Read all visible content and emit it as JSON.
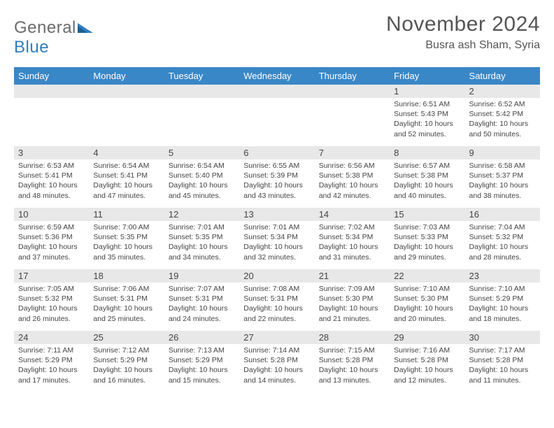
{
  "logo": {
    "word1": "General",
    "word2": "Blue"
  },
  "title": "November 2024",
  "location": "Busra ash Sham, Syria",
  "colors": {
    "header_bg": "#3a87c7",
    "header_text": "#ffffff",
    "daynum_bg": "#e8e8e8",
    "text": "#444444",
    "logo_gray": "#6b6b6b",
    "logo_blue": "#2f7fbf",
    "page_bg": "#ffffff"
  },
  "typography": {
    "title_fontsize": 30,
    "location_fontsize": 16,
    "dayheader_fontsize": 13,
    "body_fontsize": 10.5
  },
  "day_headers": [
    "Sunday",
    "Monday",
    "Tuesday",
    "Wednesday",
    "Thursday",
    "Friday",
    "Saturday"
  ],
  "weeks": [
    [
      {
        "num": "",
        "sunrise": "",
        "sunset": "",
        "daylight": ""
      },
      {
        "num": "",
        "sunrise": "",
        "sunset": "",
        "daylight": ""
      },
      {
        "num": "",
        "sunrise": "",
        "sunset": "",
        "daylight": ""
      },
      {
        "num": "",
        "sunrise": "",
        "sunset": "",
        "daylight": ""
      },
      {
        "num": "",
        "sunrise": "",
        "sunset": "",
        "daylight": ""
      },
      {
        "num": "1",
        "sunrise": "Sunrise: 6:51 AM",
        "sunset": "Sunset: 5:43 PM",
        "daylight": "Daylight: 10 hours and 52 minutes."
      },
      {
        "num": "2",
        "sunrise": "Sunrise: 6:52 AM",
        "sunset": "Sunset: 5:42 PM",
        "daylight": "Daylight: 10 hours and 50 minutes."
      }
    ],
    [
      {
        "num": "3",
        "sunrise": "Sunrise: 6:53 AM",
        "sunset": "Sunset: 5:41 PM",
        "daylight": "Daylight: 10 hours and 48 minutes."
      },
      {
        "num": "4",
        "sunrise": "Sunrise: 6:54 AM",
        "sunset": "Sunset: 5:41 PM",
        "daylight": "Daylight: 10 hours and 47 minutes."
      },
      {
        "num": "5",
        "sunrise": "Sunrise: 6:54 AM",
        "sunset": "Sunset: 5:40 PM",
        "daylight": "Daylight: 10 hours and 45 minutes."
      },
      {
        "num": "6",
        "sunrise": "Sunrise: 6:55 AM",
        "sunset": "Sunset: 5:39 PM",
        "daylight": "Daylight: 10 hours and 43 minutes."
      },
      {
        "num": "7",
        "sunrise": "Sunrise: 6:56 AM",
        "sunset": "Sunset: 5:38 PM",
        "daylight": "Daylight: 10 hours and 42 minutes."
      },
      {
        "num": "8",
        "sunrise": "Sunrise: 6:57 AM",
        "sunset": "Sunset: 5:38 PM",
        "daylight": "Daylight: 10 hours and 40 minutes."
      },
      {
        "num": "9",
        "sunrise": "Sunrise: 6:58 AM",
        "sunset": "Sunset: 5:37 PM",
        "daylight": "Daylight: 10 hours and 38 minutes."
      }
    ],
    [
      {
        "num": "10",
        "sunrise": "Sunrise: 6:59 AM",
        "sunset": "Sunset: 5:36 PM",
        "daylight": "Daylight: 10 hours and 37 minutes."
      },
      {
        "num": "11",
        "sunrise": "Sunrise: 7:00 AM",
        "sunset": "Sunset: 5:35 PM",
        "daylight": "Daylight: 10 hours and 35 minutes."
      },
      {
        "num": "12",
        "sunrise": "Sunrise: 7:01 AM",
        "sunset": "Sunset: 5:35 PM",
        "daylight": "Daylight: 10 hours and 34 minutes."
      },
      {
        "num": "13",
        "sunrise": "Sunrise: 7:01 AM",
        "sunset": "Sunset: 5:34 PM",
        "daylight": "Daylight: 10 hours and 32 minutes."
      },
      {
        "num": "14",
        "sunrise": "Sunrise: 7:02 AM",
        "sunset": "Sunset: 5:34 PM",
        "daylight": "Daylight: 10 hours and 31 minutes."
      },
      {
        "num": "15",
        "sunrise": "Sunrise: 7:03 AM",
        "sunset": "Sunset: 5:33 PM",
        "daylight": "Daylight: 10 hours and 29 minutes."
      },
      {
        "num": "16",
        "sunrise": "Sunrise: 7:04 AM",
        "sunset": "Sunset: 5:32 PM",
        "daylight": "Daylight: 10 hours and 28 minutes."
      }
    ],
    [
      {
        "num": "17",
        "sunrise": "Sunrise: 7:05 AM",
        "sunset": "Sunset: 5:32 PM",
        "daylight": "Daylight: 10 hours and 26 minutes."
      },
      {
        "num": "18",
        "sunrise": "Sunrise: 7:06 AM",
        "sunset": "Sunset: 5:31 PM",
        "daylight": "Daylight: 10 hours and 25 minutes."
      },
      {
        "num": "19",
        "sunrise": "Sunrise: 7:07 AM",
        "sunset": "Sunset: 5:31 PM",
        "daylight": "Daylight: 10 hours and 24 minutes."
      },
      {
        "num": "20",
        "sunrise": "Sunrise: 7:08 AM",
        "sunset": "Sunset: 5:31 PM",
        "daylight": "Daylight: 10 hours and 22 minutes."
      },
      {
        "num": "21",
        "sunrise": "Sunrise: 7:09 AM",
        "sunset": "Sunset: 5:30 PM",
        "daylight": "Daylight: 10 hours and 21 minutes."
      },
      {
        "num": "22",
        "sunrise": "Sunrise: 7:10 AM",
        "sunset": "Sunset: 5:30 PM",
        "daylight": "Daylight: 10 hours and 20 minutes."
      },
      {
        "num": "23",
        "sunrise": "Sunrise: 7:10 AM",
        "sunset": "Sunset: 5:29 PM",
        "daylight": "Daylight: 10 hours and 18 minutes."
      }
    ],
    [
      {
        "num": "24",
        "sunrise": "Sunrise: 7:11 AM",
        "sunset": "Sunset: 5:29 PM",
        "daylight": "Daylight: 10 hours and 17 minutes."
      },
      {
        "num": "25",
        "sunrise": "Sunrise: 7:12 AM",
        "sunset": "Sunset: 5:29 PM",
        "daylight": "Daylight: 10 hours and 16 minutes."
      },
      {
        "num": "26",
        "sunrise": "Sunrise: 7:13 AM",
        "sunset": "Sunset: 5:29 PM",
        "daylight": "Daylight: 10 hours and 15 minutes."
      },
      {
        "num": "27",
        "sunrise": "Sunrise: 7:14 AM",
        "sunset": "Sunset: 5:28 PM",
        "daylight": "Daylight: 10 hours and 14 minutes."
      },
      {
        "num": "28",
        "sunrise": "Sunrise: 7:15 AM",
        "sunset": "Sunset: 5:28 PM",
        "daylight": "Daylight: 10 hours and 13 minutes."
      },
      {
        "num": "29",
        "sunrise": "Sunrise: 7:16 AM",
        "sunset": "Sunset: 5:28 PM",
        "daylight": "Daylight: 10 hours and 12 minutes."
      },
      {
        "num": "30",
        "sunrise": "Sunrise: 7:17 AM",
        "sunset": "Sunset: 5:28 PM",
        "daylight": "Daylight: 10 hours and 11 minutes."
      }
    ]
  ]
}
